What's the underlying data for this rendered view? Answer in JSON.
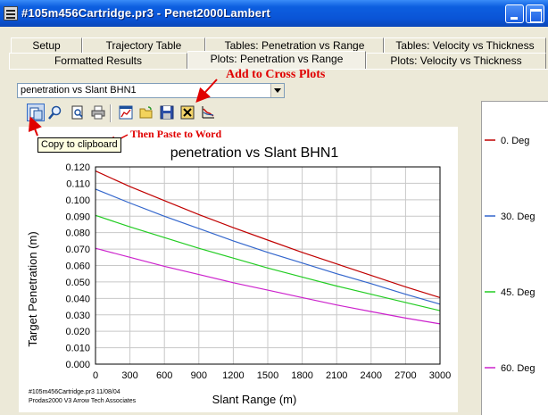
{
  "window": {
    "title": "#105m456Cartridge.pr3 - Penet2000Lambert"
  },
  "tabs": {
    "row1": [
      {
        "label": "Setup"
      },
      {
        "label": "Trajectory Table"
      },
      {
        "label": "Tables: Penetration vs Range"
      },
      {
        "label": "Tables: Velocity vs Thickness"
      }
    ],
    "row2": [
      {
        "label": "Formatted Results"
      },
      {
        "label": "Plots: Penetration vs Range"
      },
      {
        "label": "Plots: Velocity vs Thickness"
      }
    ],
    "active": "Plots: Penetration vs Range"
  },
  "plot_select": {
    "value": "penetration vs Slant BHN1"
  },
  "toolbar": {
    "buttons": [
      {
        "icon": "copy-clipboard-icon"
      },
      {
        "icon": "zoom-icon"
      },
      {
        "icon": "print-preview-icon"
      },
      {
        "icon": "print-icon"
      },
      {
        "icon": "chart-properties-icon"
      },
      {
        "icon": "open-folder-icon"
      },
      {
        "icon": "save-disk-icon"
      },
      {
        "icon": "close-x-icon"
      },
      {
        "icon": "add-cross-plot-icon"
      }
    ],
    "tooltip": "Copy to clipboard"
  },
  "annotations": {
    "add_cross_plots": "Add to Cross Plots",
    "paste_to_word": "Then Paste to Word",
    "color": "#e00000"
  },
  "footnote": {
    "line1": "#105m456Cartridge.pr3   11/08/04",
    "line2": "Prodas2000 V3 Arrow Tech Associates"
  },
  "chart_data": {
    "type": "line",
    "title": "penetration vs Slant BHN1",
    "xlabel": "Slant Range (m)",
    "ylabel": "Target Penetration (m)",
    "xlim": [
      0,
      3000
    ],
    "ylim": [
      0,
      0.12
    ],
    "xticks": [
      "0",
      "300",
      "600",
      "900",
      "1200",
      "1500",
      "1800",
      "2100",
      "2400",
      "2700",
      "3000"
    ],
    "yticks": [
      "0.000",
      "0.010",
      "0.020",
      "0.030",
      "0.040",
      "0.050",
      "0.060",
      "0.070",
      "0.080",
      "0.090",
      "0.100",
      "0.110",
      "0.120"
    ],
    "grid": true,
    "legend_position": "right",
    "x": [
      0,
      300,
      600,
      900,
      1200,
      1500,
      1800,
      2100,
      2400,
      2700,
      3000
    ],
    "series": [
      {
        "name": "0. Deg",
        "color": "#c00000",
        "values": [
          0.1175,
          0.108,
          0.0995,
          0.091,
          0.083,
          0.0755,
          0.068,
          0.061,
          0.054,
          0.047,
          0.0405
        ]
      },
      {
        "name": "30. Deg",
        "color": "#3366cc",
        "values": [
          0.1065,
          0.098,
          0.09,
          0.0825,
          0.075,
          0.068,
          0.0615,
          0.055,
          0.049,
          0.0425,
          0.0365
        ]
      },
      {
        "name": "45. Deg",
        "color": "#22cc22",
        "values": [
          0.0905,
          0.0835,
          0.077,
          0.0705,
          0.0645,
          0.0585,
          0.053,
          0.0475,
          0.0425,
          0.0375,
          0.0325
        ]
      },
      {
        "name": "60. Deg",
        "color": "#cc22cc",
        "values": [
          0.0705,
          0.065,
          0.0595,
          0.0545,
          0.0495,
          0.045,
          0.0405,
          0.036,
          0.032,
          0.028,
          0.0245
        ]
      }
    ]
  }
}
